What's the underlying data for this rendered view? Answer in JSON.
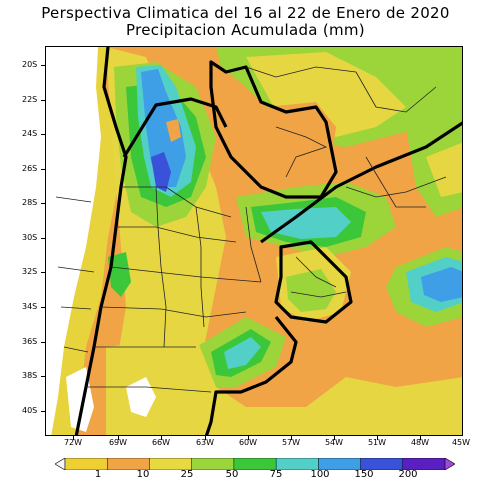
{
  "title": {
    "line1": "Perspectiva Climatica del 16 al 22 de Enero de 2020",
    "line2": "Precipitacion Acumulada (mm)"
  },
  "axes": {
    "lat_labels": [
      "20S",
      "22S",
      "24S",
      "26S",
      "28S",
      "30S",
      "32S",
      "34S",
      "36S",
      "38S",
      "40S"
    ],
    "lon_labels": [
      "72W",
      "69W",
      "66W",
      "63W",
      "60W",
      "57W",
      "54W",
      "51W",
      "48W",
      "45W"
    ]
  },
  "colorbar": {
    "labels": [
      "1",
      "10",
      "25",
      "50",
      "75",
      "100",
      "150",
      "200"
    ],
    "colors": [
      "#f7f7f7",
      "#eed035",
      "#f0a446",
      "#e7d940",
      "#9ad63b",
      "#3cc73a",
      "#52cfc7",
      "#3e9ee6",
      "#3a52d9",
      "#5a1fc0",
      "#a24ad6"
    ]
  },
  "legend_colors": {
    "none": "#ffffff",
    "c1_10": "#eed035",
    "c10_25": "#f0a446",
    "c25_50": "#e5d642",
    "c50_75": "#9bd53a",
    "c75_100": "#3cc73a",
    "c100_150": "#52cfc7",
    "c150_200": "#3e9ee6",
    "c200": "#3a52d9"
  }
}
